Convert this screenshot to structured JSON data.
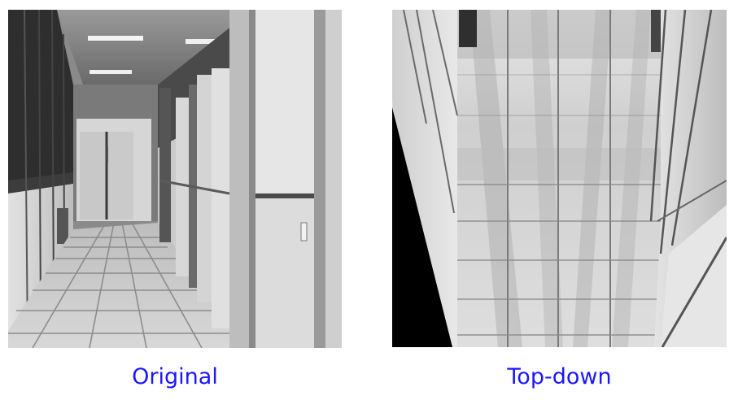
{
  "panels": [
    {
      "caption": "Original",
      "view": "perspective corridor photograph"
    },
    {
      "caption": "Top-down",
      "view": "bird's-eye warped floor view"
    }
  ],
  "colors": {
    "caption_text": "#1c17ff",
    "background": "#ffffff",
    "mask": "#000000"
  }
}
